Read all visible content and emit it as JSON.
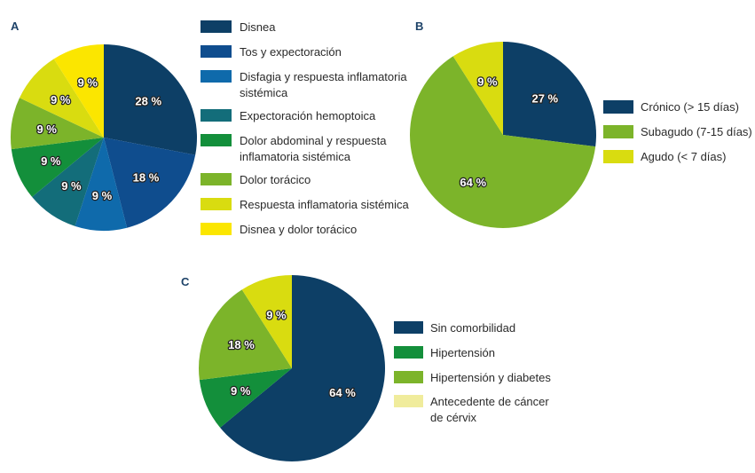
{
  "chart_data": [
    {
      "type": "pie",
      "panel": "A",
      "start": "top",
      "direction": "clockwise",
      "slices": [
        {
          "label": "Disnea",
          "value": 28,
          "display": "28 %",
          "color": "#0d3f66",
          "legend_lines": [
            "Disnea"
          ]
        },
        {
          "label": "Tos y expectoración",
          "value": 18,
          "display": "18 %",
          "color": "#0f4d8e",
          "legend_lines": [
            "Tos y expectoración"
          ]
        },
        {
          "label": "Disfagia y respuesta inflamatoria sistémica",
          "value": 9,
          "display": "9 %",
          "color": "#0f6aab",
          "legend_lines": [
            "Disfagia y respuesta inflamatoria",
            "sistémica"
          ]
        },
        {
          "label": "Expectoración hemoptoica",
          "value": 9,
          "display": "9 %",
          "color": "#136d7a",
          "legend_lines": [
            "Expectoración hemoptoica"
          ]
        },
        {
          "label": "Dolor abdominal y respuesta inflamatoria sistémica",
          "value": 9,
          "display": "9 %",
          "color": "#138f3b",
          "legend_lines": [
            "Dolor abdominal y respuesta",
            "inflamatoria sistémica"
          ]
        },
        {
          "label": "Dolor torácico",
          "value": 9,
          "display": "9 %",
          "color": "#7cb42a",
          "legend_lines": [
            "Dolor torácico"
          ]
        },
        {
          "label": "Respuesta inflamatoria sistémica",
          "value": 9,
          "display": "9 %",
          "color": "#d9dc10",
          "legend_lines": [
            "Respuesta inflamatoria sistémica"
          ]
        },
        {
          "label": "Disnea y dolor torácico",
          "value": 9,
          "display": "9 %",
          "color": "#fbe600",
          "legend_lines": [
            "Disnea y dolor torácico"
          ]
        }
      ]
    },
    {
      "type": "pie",
      "panel": "B",
      "start": "top",
      "direction": "clockwise",
      "slices": [
        {
          "label": "Crónico (> 15 días)",
          "value": 27,
          "display": "27 %",
          "color": "#0d3f66",
          "legend_lines": [
            "Crónico (> 15 días)"
          ]
        },
        {
          "label": "Subagudo (7-15 días)",
          "value": 64,
          "display": "64 %",
          "color": "#7cb42a",
          "legend_lines": [
            "Subagudo (7-15 días)"
          ]
        },
        {
          "label": "Agudo (< 7 días)",
          "value": 9,
          "display": "9 %",
          "color": "#d9dc10",
          "legend_lines": [
            "Agudo (< 7 días)"
          ]
        }
      ]
    },
    {
      "type": "pie",
      "panel": "C",
      "start": "top",
      "direction": "clockwise",
      "slices": [
        {
          "label": "Sin comorbilidad",
          "value": 64,
          "display": "64 %",
          "color": "#0d3f66",
          "legend_color": "#0d3f66",
          "legend_lines": [
            "Sin comorbilidad"
          ]
        },
        {
          "label": "Hipertensión",
          "value": 9,
          "display": "9 %",
          "color": "#138f3b",
          "legend_color": "#138f3b",
          "legend_lines": [
            "Hipertensión"
          ]
        },
        {
          "label": "Hipertensión y diabetes",
          "value": 18,
          "display": "18 %",
          "color": "#7cb42a",
          "legend_color": "#7cb42a",
          "legend_lines": [
            "Hipertensión y diabetes"
          ]
        },
        {
          "label": "Antecedente de cáncer de cérvix",
          "value": 9,
          "display": "9 %",
          "color": "#d9dc10",
          "legend_color": "#f0ec9c",
          "legend_lines": [
            "Antecedente de cáncer",
            "de cérvix"
          ]
        }
      ]
    }
  ]
}
